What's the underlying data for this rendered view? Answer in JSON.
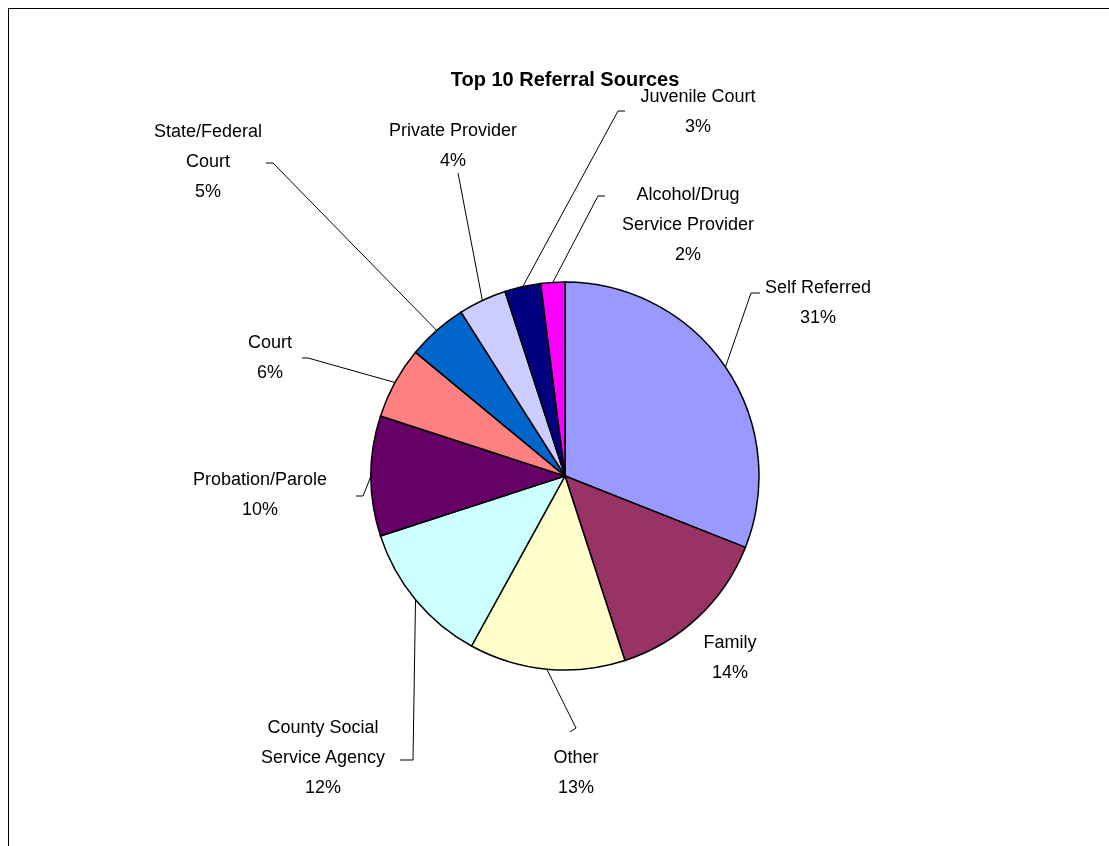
{
  "chart_data": {
    "type": "pie",
    "title": "Top 10 Referral Sources",
    "categories": [
      "Self Referred",
      "Family",
      "Other",
      "County Social Service Agency",
      "Probation/Parole",
      "Court",
      "State/Federal Court",
      "Private Provider",
      "Juvenile Court",
      "Alcohol/Drug Service Provider"
    ],
    "values": [
      31,
      14,
      13,
      12,
      10,
      6,
      5,
      4,
      3,
      2
    ],
    "colors": [
      "#9999ff",
      "#993366",
      "#ffffcc",
      "#ccffff",
      "#660066",
      "#ff8080",
      "#0066cc",
      "#ccccff",
      "#000080",
      "#ff00ff"
    ],
    "value_labels": [
      "31%",
      "14%",
      "13%",
      "12%",
      "10%",
      "6%",
      "5%",
      "4%",
      "3%",
      "2%"
    ]
  }
}
